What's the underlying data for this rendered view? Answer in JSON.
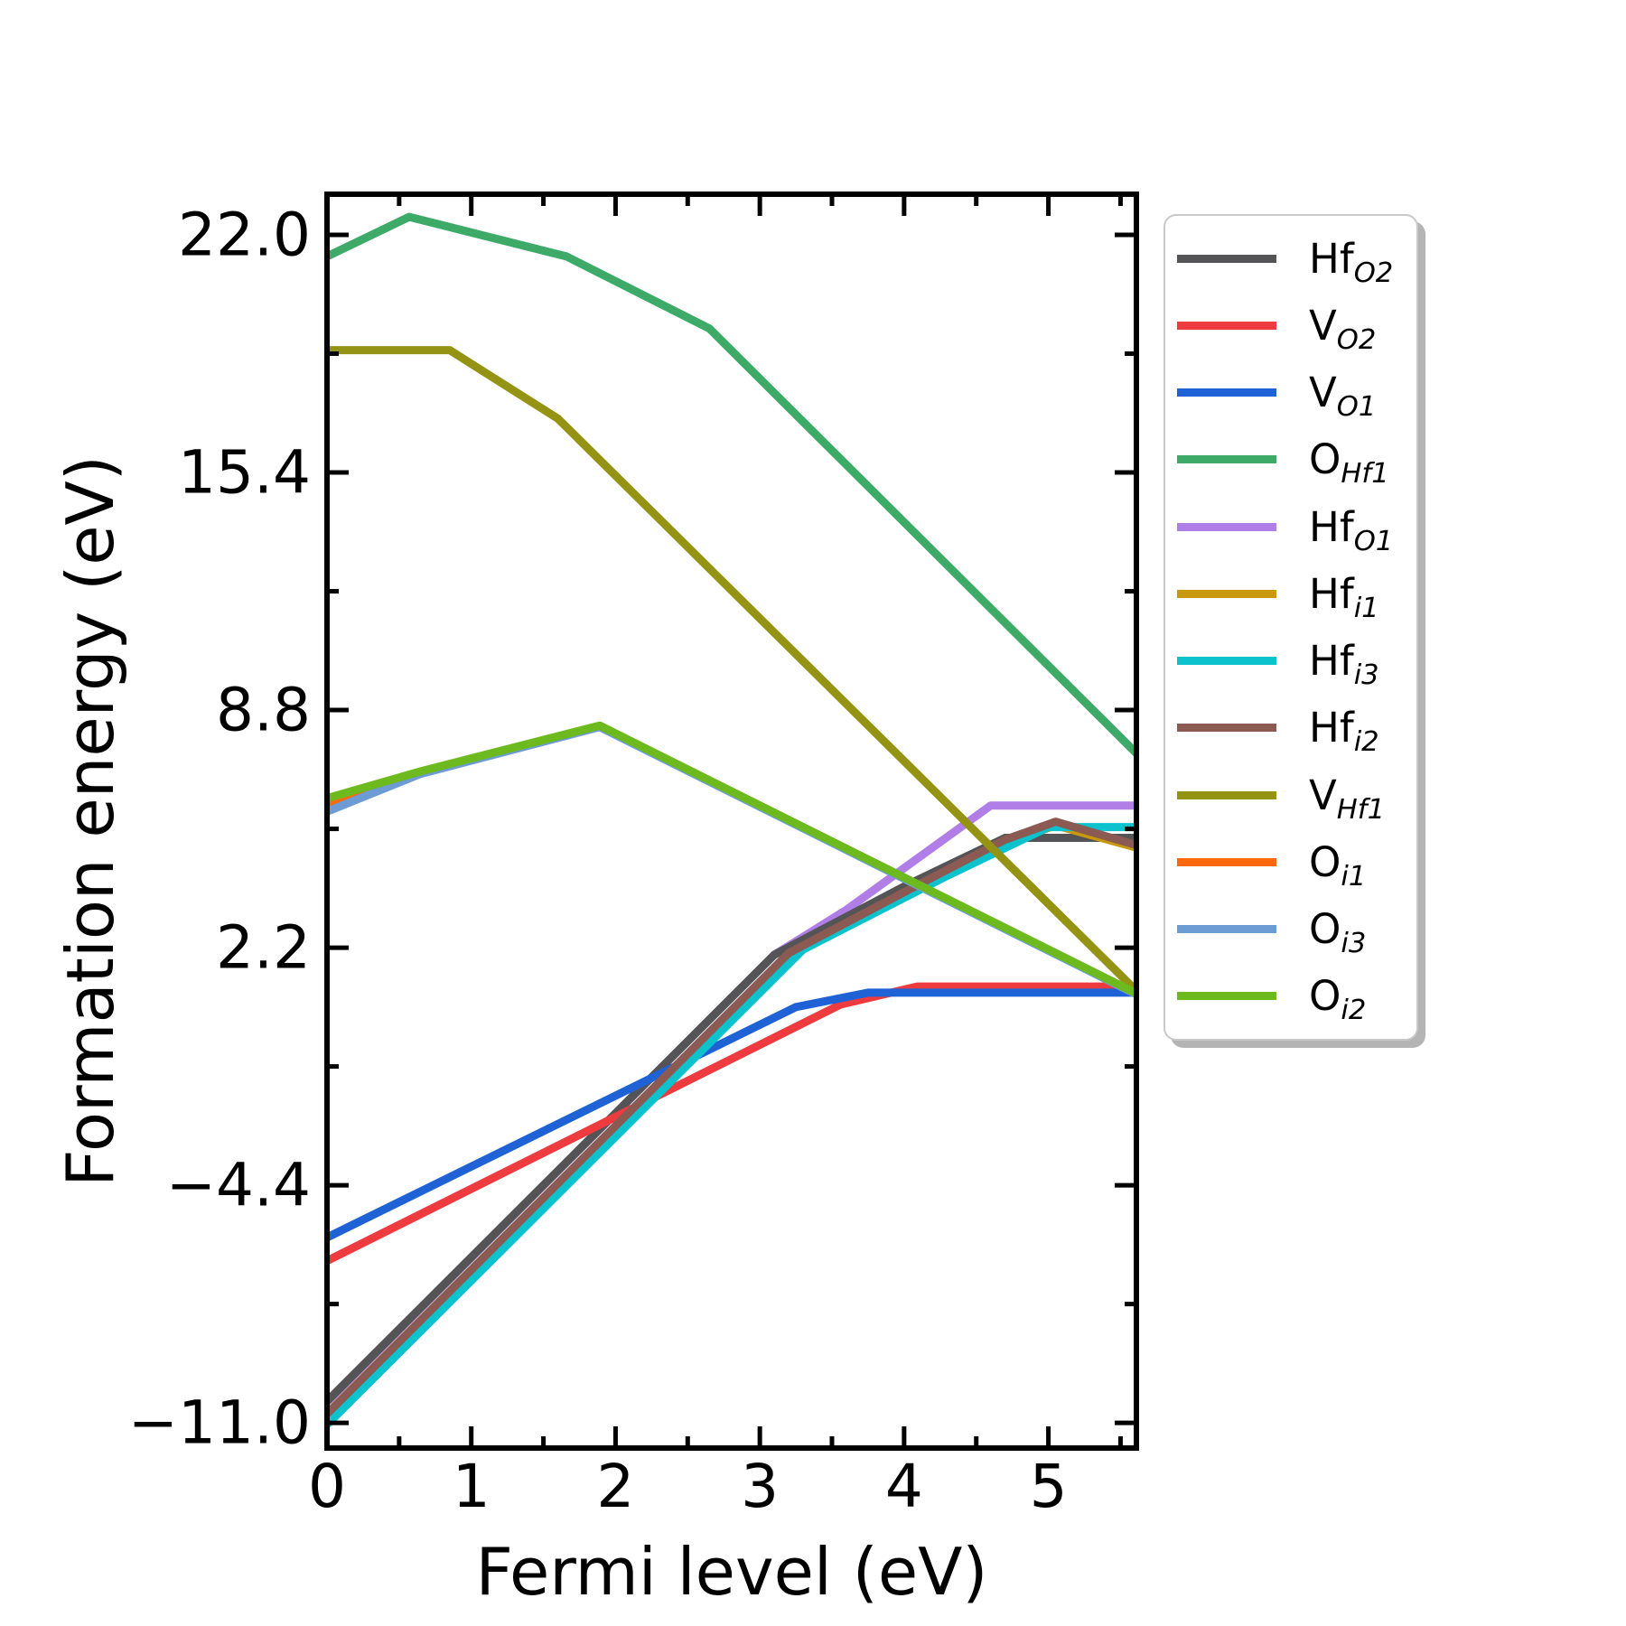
{
  "chart_data": {
    "type": "line",
    "title": "",
    "xlabel": "Fermi level (eV)",
    "ylabel": "Formation energy (eV)",
    "xlim": [
      0,
      5.61
    ],
    "ylim": [
      -11.7,
      23.13
    ],
    "grid": false,
    "legend_position": "outside-right",
    "x_ticks": {
      "major": [
        0,
        1,
        2,
        3,
        4,
        5
      ],
      "labels": [
        "0",
        "1",
        "2",
        "3",
        "4",
        "5"
      ],
      "minor": [
        0.5,
        1.5,
        2.5,
        3.5,
        4.5,
        5.5
      ]
    },
    "y_ticks": {
      "major": [
        22.0,
        15.4,
        8.8,
        2.2,
        -4.4,
        -11.0
      ],
      "labels": [
        "22.0",
        "15.4",
        "8.8",
        "2.2",
        "−4.4",
        "−11.0"
      ],
      "minor": [
        18.7,
        12.1,
        5.5,
        -1.1,
        -7.7
      ]
    },
    "series": [
      {
        "name": "Hf_O2",
        "label_base": "Hf",
        "label_sub": "O2",
        "color": "#545456",
        "zorder": 2,
        "points": [
          [
            0,
            -10.4
          ],
          [
            3.1,
            2.0
          ],
          [
            4.0,
            3.9
          ],
          [
            4.7,
            5.25
          ],
          [
            5.61,
            5.25
          ]
        ]
      },
      {
        "name": "V_O2",
        "label_base": "V",
        "label_sub": "O2",
        "color": "#ed3b3f",
        "zorder": 3,
        "points": [
          [
            0,
            -6.5
          ],
          [
            3.56,
            0.62
          ],
          [
            4.09,
            1.12
          ],
          [
            5.61,
            1.12
          ]
        ]
      },
      {
        "name": "V_O1",
        "label_base": "V",
        "label_sub": "O1",
        "color": "#1e62d5",
        "zorder": 4,
        "points": [
          [
            0,
            -5.85
          ],
          [
            3.25,
            0.55
          ],
          [
            3.75,
            0.95
          ],
          [
            5.61,
            0.95
          ]
        ]
      },
      {
        "name": "O_Hf1",
        "label_base": "O",
        "label_sub": "Hf1",
        "color": "#3eaa68",
        "zorder": 5,
        "points": [
          [
            0,
            21.4
          ],
          [
            0.57,
            22.5
          ],
          [
            1.66,
            21.4
          ],
          [
            2.65,
            19.4
          ],
          [
            5.61,
            7.6
          ]
        ]
      },
      {
        "name": "Hf_O1",
        "label_base": "Hf",
        "label_sub": "O1",
        "color": "#b07ee6",
        "zorder": 1,
        "points": [
          [
            0,
            -10.42
          ],
          [
            3.1,
            2.0
          ],
          [
            3.6,
            3.25
          ],
          [
            4.6,
            6.15
          ],
          [
            5.61,
            6.15
          ]
        ]
      },
      {
        "name": "Hf_i1",
        "label_base": "Hf",
        "label_sub": "i1",
        "color": "#c9980b",
        "zorder": 6,
        "points": [
          [
            0,
            -10.9
          ],
          [
            3.2,
            1.95
          ],
          [
            4.1,
            3.85
          ],
          [
            4.7,
            5.1
          ],
          [
            5.05,
            5.6
          ],
          [
            5.61,
            4.98
          ]
        ]
      },
      {
        "name": "Hf_i3",
        "label_base": "Hf",
        "label_sub": "i3",
        "color": "#0bc2cd",
        "zorder": 7,
        "points": [
          [
            0,
            -11.05
          ],
          [
            3.3,
            2.15
          ],
          [
            4.3,
            4.2
          ],
          [
            5.0,
            5.55
          ],
          [
            5.61,
            5.55
          ]
        ]
      },
      {
        "name": "Hf_i2",
        "label_base": "Hf",
        "label_sub": "i2",
        "color": "#8b5a52",
        "zorder": 8,
        "points": [
          [
            0,
            -10.75
          ],
          [
            3.2,
            2.05
          ],
          [
            4.1,
            3.95
          ],
          [
            4.7,
            5.2
          ],
          [
            5.05,
            5.7
          ],
          [
            5.61,
            5.05
          ]
        ]
      },
      {
        "name": "V_Hf1",
        "label_base": "V",
        "label_sub": "Hf1",
        "color": "#949314",
        "zorder": 9,
        "points": [
          [
            0,
            18.8
          ],
          [
            0.85,
            18.8
          ],
          [
            1.6,
            16.9
          ],
          [
            5.61,
            1.0
          ]
        ]
      },
      {
        "name": "O_i1",
        "label_base": "O",
        "label_sub": "i1",
        "color": "#fc690c",
        "zorder": 10,
        "points": [
          [
            0,
            6.2
          ],
          [
            0.65,
            7.05
          ],
          [
            1.89,
            8.35
          ],
          [
            5.61,
            0.92
          ]
        ]
      },
      {
        "name": "O_i3",
        "label_base": "O",
        "label_sub": "i3",
        "color": "#6d9bd3",
        "zorder": 11,
        "points": [
          [
            0,
            5.98
          ],
          [
            0.65,
            7.03
          ],
          [
            1.89,
            8.33
          ],
          [
            5.61,
            0.9
          ]
        ]
      },
      {
        "name": "O_i2",
        "label_base": "O",
        "label_sub": "i2",
        "color": "#6cba1e",
        "zorder": 12,
        "points": [
          [
            0,
            6.35
          ],
          [
            0.65,
            7.1
          ],
          [
            1.89,
            8.37
          ],
          [
            5.61,
            0.93
          ]
        ]
      }
    ]
  },
  "style": {
    "axis_color": "#000000",
    "background": "#ffffff",
    "line_width": 9,
    "frame_width": 6,
    "tick_font_size": 66,
    "legend_border_color": "#c9c9c9"
  }
}
